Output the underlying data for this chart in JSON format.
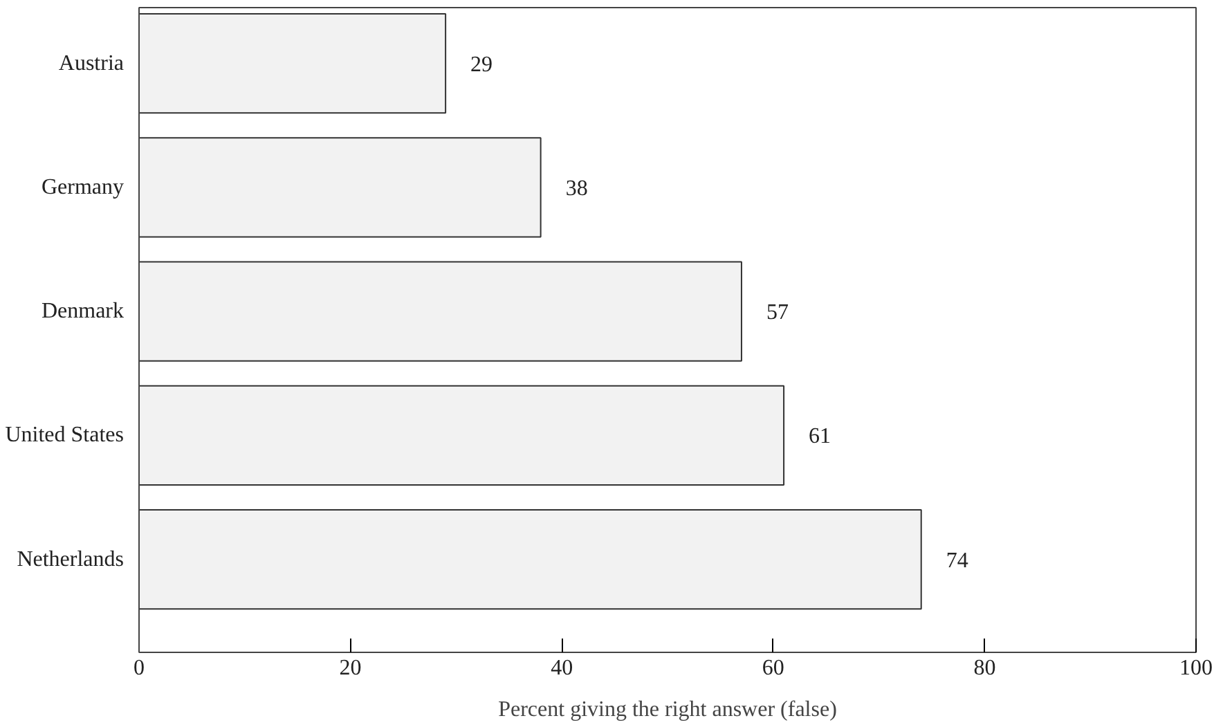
{
  "chart_data": {
    "type": "bar",
    "orientation": "horizontal",
    "xlabel": "Percent giving the right answer (false)",
    "categories": [
      "Austria",
      "Germany",
      "Denmark",
      "United States",
      "Netherlands"
    ],
    "values": [
      29,
      38,
      57,
      61,
      74
    ],
    "color": "#f2f2f2",
    "xlim": [
      0,
      100
    ],
    "xticks": [
      0,
      20,
      40,
      60,
      80,
      100
    ],
    "grid": false,
    "data_labels": true
  }
}
